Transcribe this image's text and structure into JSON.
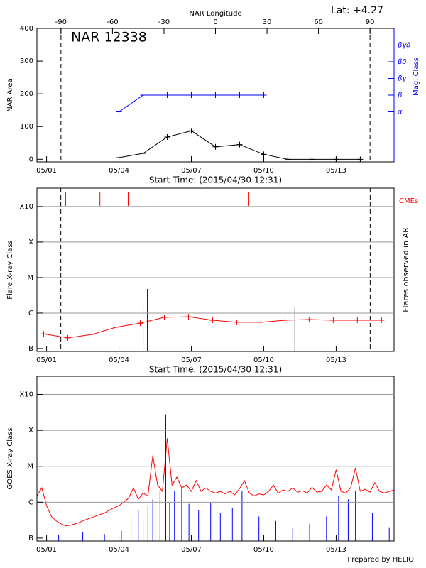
{
  "chart_data": [
    {
      "type": "line",
      "title": "NAR 12338",
      "annotation": "Lat:  +4.27",
      "x_label": "Start Time: (2015/04/30 12:31)",
      "x2_label": "NAR Longitude",
      "y_label": "NAR Area",
      "y2_label": "Mag. Class",
      "xlim": [
        0.6,
        15.4
      ],
      "xticks": [
        {
          "value": 1,
          "label": "05/01"
        },
        {
          "value": 4,
          "label": "05/04"
        },
        {
          "value": 7,
          "label": "05/07"
        },
        {
          "value": 10,
          "label": "05/10"
        },
        {
          "value": 13,
          "label": "05/13"
        }
      ],
      "x2lim": [
        -104,
        104
      ],
      "x2ticks": [
        -90,
        -60,
        -30,
        0,
        30,
        60,
        90
      ],
      "ylim": [
        -8,
        400
      ],
      "yticks": [
        0,
        100,
        200,
        300,
        400
      ],
      "y2lim": [
        -2,
        6
      ],
      "y2ticks": [
        {
          "value": 1,
          "label": "α"
        },
        {
          "value": 2,
          "label": "β"
        },
        {
          "value": 3,
          "label": "βγ"
        },
        {
          "value": 4,
          "label": "βδ"
        },
        {
          "value": 5,
          "label": "βγδ"
        }
      ],
      "markers_x2": [
        -90,
        90
      ],
      "series": [
        {
          "color": "#000000",
          "x": [
            4,
            5,
            6,
            7,
            8,
            9,
            10,
            11,
            12,
            13,
            14
          ],
          "values": [
            5,
            18,
            68,
            87,
            38,
            45,
            15,
            0,
            0,
            0,
            0
          ]
        },
        {
          "color": "#0000ff",
          "axis": "y2",
          "x": [
            4,
            5,
            6,
            7,
            8,
            9,
            10
          ],
          "values": [
            1,
            2,
            2,
            2,
            2,
            2,
            2
          ]
        }
      ]
    },
    {
      "type": "line",
      "log": true,
      "grid": true,
      "x_label": "Start Time: (2015/04/30 12:31)",
      "y_label": "Flare X-ray Class",
      "y2_label": "Flares observed in AR",
      "xlim": [
        0.6,
        15.4
      ],
      "xticks": [
        {
          "value": 1,
          "label": "05/01"
        },
        {
          "value": 4,
          "label": "05/04"
        },
        {
          "value": 7,
          "label": "05/07"
        },
        {
          "value": 10,
          "label": "05/10"
        },
        {
          "value": 13,
          "label": "05/13"
        }
      ],
      "ylim": [
        8.3e-08,
        0.0033
      ],
      "yticks": [
        {
          "value": 1e-07,
          "label": "B"
        },
        {
          "value": 1e-06,
          "label": "C"
        },
        {
          "value": 1e-05,
          "label": "M"
        },
        {
          "value": 0.0001,
          "label": "X"
        },
        {
          "value": 0.001,
          "label": "X10"
        }
      ],
      "markers_x": [
        1.59,
        14.41
      ],
      "cme": {
        "label": "CMEs",
        "color": "#ff0000",
        "x": [
          1.79,
          3.21,
          4.38,
          9.38
        ]
      },
      "series": [
        {
          "color": "#ff0000",
          "x": [
            0.88,
            1.88,
            2.88,
            3.88,
            4.88,
            5.88,
            6.88,
            7.88,
            8.88,
            9.88,
            10.88,
            11.88,
            12.88,
            13.88,
            14.88
          ],
          "values": [
            2.6e-07,
            2e-07,
            2.5e-07,
            4e-07,
            5.2e-07,
            7.6e-07,
            7.9e-07,
            6.3e-07,
            5.5e-07,
            5.5e-07,
            6.3e-07,
            6.6e-07,
            6.3e-07,
            6.3e-07,
            6.3e-07
          ]
        },
        {
          "color": "#000000",
          "type": "stem",
          "x": [
            5.0,
            5.18,
            11.29
          ],
          "values": [
            1.6e-06,
            4.8e-06,
            1.5e-06
          ]
        }
      ]
    },
    {
      "type": "line",
      "log": true,
      "grid": true,
      "y_label": "GOES X-ray Class",
      "xlim": [
        0.6,
        15.4
      ],
      "xticks": [
        {
          "value": 1,
          "label": "05/01"
        },
        {
          "value": 4,
          "label": "05/04"
        },
        {
          "value": 7,
          "label": "05/07"
        },
        {
          "value": 10,
          "label": "05/10"
        },
        {
          "value": 13,
          "label": "05/13"
        }
      ],
      "ylim": [
        8.3e-08,
        0.0032
      ],
      "yticks": [
        {
          "value": 1e-07,
          "label": "B"
        },
        {
          "value": 1e-06,
          "label": "C"
        },
        {
          "value": 1e-05,
          "label": "M"
        },
        {
          "value": 0.0001,
          "label": "X"
        },
        {
          "value": 0.001,
          "label": "X10"
        }
      ],
      "series": [
        {
          "color": "#ff0000",
          "x": [
            0.6,
            0.8,
            1.0,
            1.2,
            1.4,
            1.6,
            1.8,
            2.0,
            2.2,
            2.4,
            2.6,
            2.8,
            3.0,
            3.2,
            3.4,
            3.6,
            3.8,
            4.0,
            4.2,
            4.4,
            4.6,
            4.8,
            5.0,
            5.2,
            5.4,
            5.6,
            5.8,
            6.0,
            6.2,
            6.4,
            6.6,
            6.8,
            7.0,
            7.2,
            7.4,
            7.6,
            7.8,
            8.0,
            8.2,
            8.4,
            8.6,
            8.8,
            9.0,
            9.2,
            9.4,
            9.6,
            9.8,
            10.0,
            10.2,
            10.4,
            10.6,
            10.8,
            11.0,
            11.2,
            11.4,
            11.6,
            11.8,
            12.0,
            12.2,
            12.4,
            12.6,
            12.8,
            13.0,
            13.2,
            13.4,
            13.6,
            13.8,
            14.0,
            14.2,
            14.4,
            14.6,
            14.8,
            15.0,
            15.2,
            15.4
          ],
          "values": [
            1.5e-06,
            2.5e-06,
            8e-07,
            4e-07,
            3e-07,
            2.5e-07,
            2.2e-07,
            2.3e-07,
            2.5e-07,
            2.8e-07,
            3.2e-07,
            3.6e-07,
            4e-07,
            4.5e-07,
            5e-07,
            6e-07,
            7e-07,
            8e-07,
            1e-06,
            1.3e-06,
            2.5e-06,
            1.2e-06,
            1.8e-06,
            1.5e-06,
            2e-05,
            3e-06,
            2e-06,
            6e-05,
            3e-06,
            5e-06,
            2.5e-06,
            3e-06,
            2e-06,
            4e-06,
            2e-06,
            2.5e-06,
            2e-06,
            1.8e-06,
            2e-06,
            1.7e-06,
            2e-06,
            1.6e-06,
            2.4e-06,
            4e-06,
            1.8e-06,
            1.5e-06,
            1.7e-06,
            1.6e-06,
            2e-06,
            3e-06,
            1.8e-06,
            2.2e-06,
            2e-06,
            2.5e-06,
            1.9e-06,
            2.1e-06,
            1.8e-06,
            2.6e-06,
            1.9e-06,
            2e-06,
            3e-06,
            2.2e-06,
            8e-06,
            2e-06,
            1.8e-06,
            2.5e-06,
            9e-06,
            2e-06,
            2.3e-06,
            1.9e-06,
            3.5e-06,
            2e-06,
            1.8e-06,
            2e-06,
            2.2e-06
          ]
        },
        {
          "color": "#0000ff",
          "type": "stem",
          "x": [
            1.5,
            2.5,
            3.4,
            4.1,
            4.5,
            4.8,
            5.0,
            5.2,
            5.4,
            5.5,
            5.7,
            5.94,
            6.1,
            6.3,
            6.6,
            6.9,
            7.3,
            7.8,
            8.2,
            8.7,
            9.1,
            9.8,
            10.5,
            11.2,
            11.9,
            12.6,
            13.1,
            13.5,
            13.8,
            14.5,
            15.2
          ],
          "values": [
            1.2e-07,
            1.5e-07,
            1.3e-07,
            1.6e-07,
            4e-07,
            6e-07,
            3e-07,
            8e-07,
            1.2e-06,
            1.5e-05,
            2e-06,
            0.00028,
            1e-06,
            2e-06,
            2.5e-06,
            9e-07,
            6e-07,
            1e-06,
            5e-07,
            7e-07,
            2e-06,
            4e-07,
            3e-07,
            2e-07,
            2.5e-07,
            4e-07,
            1.5e-06,
            1.2e-06,
            2e-06,
            5e-07,
            2e-07
          ]
        }
      ]
    }
  ],
  "credit": "Prepared by HELIO"
}
